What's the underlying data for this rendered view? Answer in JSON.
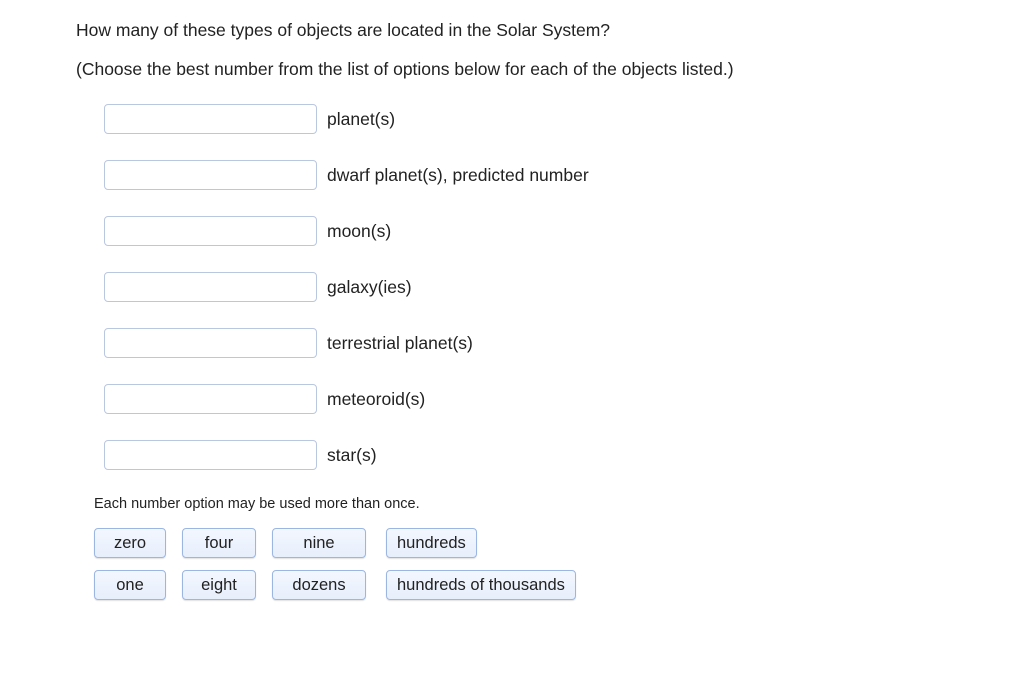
{
  "question": "How many of these types of objects are located in the Solar System?",
  "instruction": "(Choose the best number from the list of options below for each of the objects listed.)",
  "items": [
    {
      "label": "planet(s)"
    },
    {
      "label": "dwarf planet(s), predicted number"
    },
    {
      "label": "moon(s)"
    },
    {
      "label": "galaxy(ies)"
    },
    {
      "label": "terrestrial planet(s)"
    },
    {
      "label": "meteoroid(s)"
    },
    {
      "label": "star(s)"
    }
  ],
  "note": "Each number option may be used more than once.",
  "options": {
    "row1": [
      "zero",
      "four",
      "nine",
      "hundreds"
    ],
    "row2": [
      "one",
      "eight",
      "dozens",
      "hundreds of thousands"
    ]
  },
  "colors": {
    "slot_border": "#b9c7e0",
    "option_border": "#9bb6e3",
    "option_bg_top": "#f3f7fe",
    "option_bg_bottom": "#e7effc",
    "text": "#222222",
    "background": "#ffffff"
  }
}
